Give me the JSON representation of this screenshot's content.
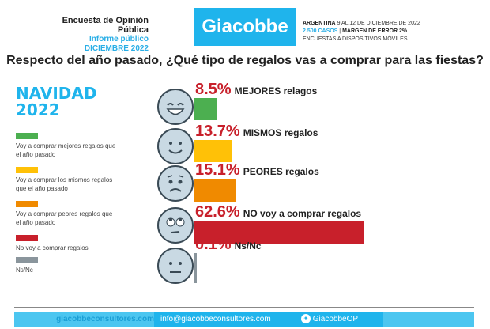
{
  "header": {
    "survey": "Encuesta de Opinión Pública",
    "report": "Informe público",
    "month": "DICIEMBRE 2022",
    "logo": "Giacobbe",
    "line1_bold": "ARGENTINA",
    "line1": " 9 AL 12 DE DICIEMBRE DE 2022",
    "cases": "2.500 CASOS",
    "sep": " | ",
    "margin": "MARGEN DE ERROR 2%",
    "line3": "ENCUESTAS A DISPOSITIVOS MÓVILES"
  },
  "legend": {
    "title1": "NAVIDAD",
    "title2": "2022"
  },
  "chart_data": {
    "type": "bar",
    "title": "Respecto del año pasado, ¿Qué tipo de regalos vas a comprar para las fiestas?",
    "categories": [
      "MEJORES relagos",
      "MISMOS regalos",
      "PEORES regalos",
      "NO voy a comprar regalos",
      "Ns/Nc"
    ],
    "values": [
      8.5,
      13.7,
      15.1,
      62.6,
      0.1
    ],
    "value_labels": [
      "8.5%",
      "13.7%",
      "15.1%",
      "62.6%",
      "0.1%"
    ],
    "colors": [
      "#4caf50",
      "#ffc107",
      "#f08a00",
      "#c8202b",
      "#8a959c"
    ],
    "faces": [
      "grinning",
      "smiling",
      "worried",
      "eyes-rolling",
      "neutral"
    ],
    "legend_entries": [
      "Voy a comprar mejores regalos que el año pasado",
      "Voy a comprar los mismos regalos que el año pasado",
      "Voy a comprar peores regalos que el año pasado",
      "No voy a comprar regalos",
      "Ns/Nc"
    ],
    "xlim": [
      0,
      100
    ]
  },
  "footer": {
    "web": "giacobbeconsultores.com",
    "email": "info@giacobbeconsultores.com",
    "twitter": "GiacobbeOP"
  }
}
